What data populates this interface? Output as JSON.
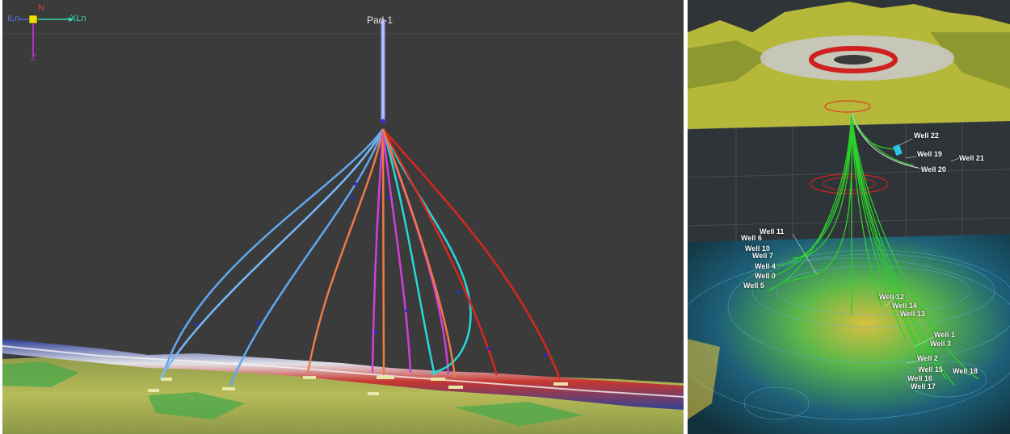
{
  "left_view": {
    "axes": {
      "n_label": "N",
      "iln_label": "ILn",
      "xln_label": "XLn",
      "z_label": "Z"
    },
    "pad_label": "Pad-1",
    "colors": {
      "background": "#3b3b3b",
      "main_bore": "#9aa4ff",
      "blue": "#5fa8ef",
      "orange": "#ee7a45",
      "magenta": "#d040d8",
      "cyan": "#28d8d8",
      "red": "#d8281e",
      "terrain": "#b9bd55"
    }
  },
  "right_view": {
    "well_labels": [
      "Well 22",
      "Well 19",
      "Well 20",
      "Well 21",
      "Well 11",
      "Well 6",
      "Well 10",
      "Well 7",
      "Well 4",
      "Well 0",
      "Well 5",
      "Well 12",
      "Well 14",
      "Well 13",
      "Well 1",
      "Well 3",
      "Well 2",
      "Well 15",
      "Well 16",
      "Well 17",
      "Well 18"
    ],
    "colors": {
      "wells": "#2cd02c",
      "terrain": "#b6b83a",
      "ring": "#d02020"
    }
  }
}
